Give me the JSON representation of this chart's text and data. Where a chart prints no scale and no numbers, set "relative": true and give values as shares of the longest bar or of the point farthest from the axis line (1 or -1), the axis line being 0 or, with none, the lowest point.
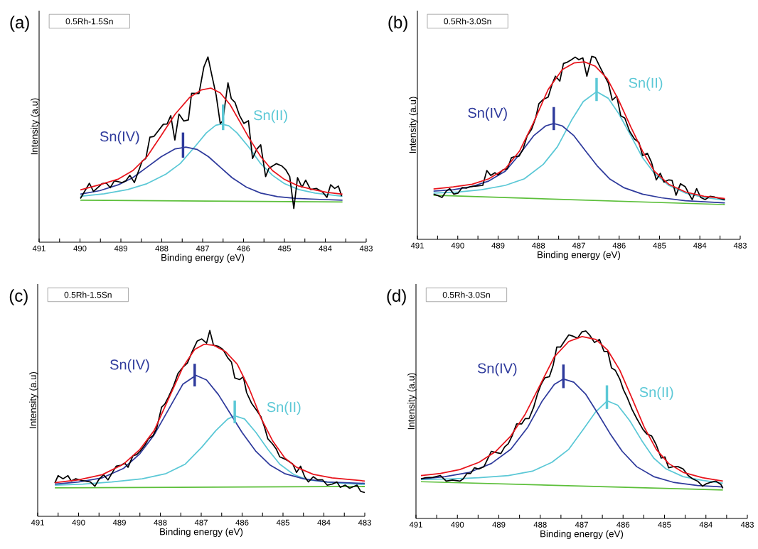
{
  "chart_data": [
    {
      "type": "line",
      "relative": true,
      "tick_labels": "x",
      "marker": "none",
      "title": "(a)",
      "subtitle": "0.5Rh-1.5Sn",
      "xlabel": "Binding energy (eV)",
      "ylabel": "Intensity (a.u)",
      "xlim": [
        491,
        483
      ],
      "xticks": [
        491,
        {
          "value": 490.5,
          "label": null
        },
        490,
        {
          "value": 489.5,
          "label": null
        },
        489,
        {
          "value": 488.5,
          "label": null
        },
        488,
        {
          "value": 487.5,
          "label": null
        },
        487,
        {
          "value": 486.5,
          "label": null
        },
        486,
        {
          "value": 485.5,
          "label": null
        },
        485,
        {
          "value": 484.5,
          "label": null
        },
        484,
        {
          "value": 483.5,
          "label": null
        },
        483
      ],
      "series": [
        {
          "color": "#5cbf3a",
          "x": [
            489.99,
            483.58
          ],
          "values": [
            0.227,
            0.217
          ]
        },
        {
          "name": "Sn(II)",
          "color": "#5bc8d6",
          "x": [
            489.99,
            489.41,
            488.83,
            488.36,
            487.9,
            487.55,
            487.2,
            486.91,
            486.68,
            486.54,
            486.36,
            486.16,
            485.87,
            485.58,
            485.29,
            485.0,
            484.65,
            484.25,
            483.58
          ],
          "values": [
            0.248,
            0.261,
            0.284,
            0.316,
            0.367,
            0.424,
            0.513,
            0.59,
            0.631,
            0.638,
            0.628,
            0.59,
            0.513,
            0.424,
            0.361,
            0.316,
            0.284,
            0.265,
            0.248
          ]
        },
        {
          "name": "Sn(IV)",
          "color": "#2e3a9c",
          "x": [
            489.99,
            489.52,
            489.06,
            488.71,
            488.36,
            488.01,
            487.67,
            487.41,
            487.14,
            486.86,
            486.57,
            486.28,
            485.93,
            485.58,
            485.17,
            484.71,
            484.13,
            483.58
          ],
          "values": [
            0.259,
            0.278,
            0.31,
            0.348,
            0.405,
            0.462,
            0.504,
            0.513,
            0.501,
            0.462,
            0.405,
            0.348,
            0.297,
            0.265,
            0.246,
            0.236,
            0.231,
            0.227
          ]
        },
        {
          "color": "#000000",
          "x": [
            489.99,
            489.77,
            489.67,
            489.46,
            489.36,
            489.26,
            489.16,
            488.97,
            488.88,
            488.78,
            488.67,
            488.48,
            488.39,
            488.29,
            488.19,
            487.96,
            487.87,
            487.78,
            487.68,
            487.58,
            487.46,
            487.35,
            487.27,
            487.09,
            486.97,
            486.87,
            486.77,
            486.67,
            486.57,
            486.51,
            486.38,
            486.3,
            486.21,
            486.1,
            485.99,
            485.88,
            485.78,
            485.68,
            485.58,
            485.46,
            485.38,
            485.2,
            485.06,
            484.97,
            484.87,
            484.77,
            484.68,
            484.57,
            484.48,
            484.36,
            484.22,
            484.07,
            483.96,
            483.87,
            483.77,
            483.68,
            483.6
          ],
          "values": [
            0.236,
            0.318,
            0.274,
            0.316,
            0.32,
            0.294,
            0.331,
            0.322,
            0.331,
            0.361,
            0.322,
            0.437,
            0.452,
            0.567,
            0.571,
            0.637,
            0.638,
            0.683,
            0.552,
            0.692,
            0.654,
            0.66,
            0.804,
            0.803,
            0.946,
            1,
            0.896,
            0.794,
            0.641,
            0.654,
            0.86,
            0.775,
            0.755,
            0.685,
            0.641,
            0.656,
            0.452,
            0.501,
            0.526,
            0.354,
            0.399,
            0.424,
            0.411,
            0.392,
            0.354,
            0.182,
            0.348,
            0.297,
            0.335,
            0.284,
            0.29,
            0.271,
            0.242,
            0.31,
            0.29,
            0.303,
            0.248
          ]
        },
        {
          "color": "#e8141c",
          "x": [
            489.99,
            489.52,
            489.06,
            488.71,
            488.36,
            488.01,
            487.67,
            487.32,
            487.03,
            486.8,
            486.57,
            486.33,
            486.1,
            485.87,
            485.58,
            485.29,
            485.0,
            484.65,
            484.3,
            483.96,
            483.58
          ],
          "values": [
            0.282,
            0.31,
            0.341,
            0.386,
            0.462,
            0.577,
            0.692,
            0.781,
            0.822,
            0.832,
            0.806,
            0.743,
            0.654,
            0.564,
            0.462,
            0.386,
            0.339,
            0.303,
            0.284,
            0.269,
            0.259
          ]
        },
        {
          "color": "#2e3a9c",
          "x": [
            487.48,
            487.48
          ],
          "values": [
            0.456,
            0.592
          ]
        },
        {
          "color": "#5bc8d6",
          "x": [
            486.5,
            486.5
          ],
          "values": [
            0.605,
            0.743
          ]
        }
      ]
    },
    {
      "type": "line",
      "relative": true,
      "tick_labels": "x",
      "marker": "none",
      "title": "(b)",
      "subtitle": "0.5Rh-3.0Sn",
      "xlabel": "Binding energy (eV)",
      "ylabel": "Intensity (a.u)",
      "xlim": [
        491,
        483
      ],
      "xticks": [
        491,
        {
          "value": 490.5,
          "label": null
        },
        490,
        {
          "value": 489.5,
          "label": null
        },
        489,
        {
          "value": 488.5,
          "label": null
        },
        488,
        {
          "value": 487.5,
          "label": null
        },
        487,
        {
          "value": 486.5,
          "label": null
        },
        486,
        {
          "value": 485.5,
          "label": null
        },
        485,
        {
          "value": 484.5,
          "label": null
        },
        484,
        {
          "value": 483.5,
          "label": null
        },
        483
      ],
      "series": [
        {
          "color": "#5cbf3a",
          "x": [
            490.6,
            483.38
          ],
          "values": [
            0.241,
            0.19
          ]
        },
        {
          "name": "Sn(II)",
          "color": "#5bc8d6",
          "x": [
            490.6,
            489.99,
            489.41,
            488.82,
            488.35,
            487.88,
            487.53,
            487.18,
            486.89,
            486.56,
            486.27,
            486.01,
            485.71,
            485.42,
            485.13,
            484.77,
            484.36,
            483.9,
            483.38
          ],
          "values": [
            0.253,
            0.259,
            0.271,
            0.295,
            0.331,
            0.41,
            0.506,
            0.651,
            0.753,
            0.807,
            0.771,
            0.687,
            0.566,
            0.446,
            0.361,
            0.295,
            0.253,
            0.229,
            0.214
          ]
        },
        {
          "name": "Sn(IV)",
          "color": "#2e3a9c",
          "x": [
            490.6,
            490.11,
            489.64,
            489.23,
            488.82,
            488.47,
            488.12,
            487.82,
            487.62,
            487.41,
            487.12,
            486.83,
            486.53,
            486.24,
            485.89,
            485.42,
            484.95,
            484.36,
            483.38
          ],
          "values": [
            0.263,
            0.271,
            0.289,
            0.319,
            0.373,
            0.464,
            0.566,
            0.62,
            0.633,
            0.62,
            0.566,
            0.482,
            0.398,
            0.331,
            0.283,
            0.247,
            0.227,
            0.211,
            0.199
          ]
        },
        {
          "color": "#000000",
          "x": [
            490.6,
            490.49,
            490.39,
            490.28,
            490.2,
            490.1,
            489.99,
            489.89,
            489.79,
            489.67,
            489.52,
            489.38,
            489.28,
            489.18,
            489.08,
            489.0,
            488.88,
            488.77,
            488.67,
            488.59,
            488.48,
            488.38,
            488.28,
            488.17,
            488.07,
            487.99,
            487.88,
            487.76,
            487.66,
            487.58,
            487.47,
            487.38,
            487.3,
            487.18,
            487.09,
            487.0,
            486.9,
            486.8,
            486.68,
            486.59,
            486.47,
            486.36,
            486.27,
            486.17,
            486.06,
            485.96,
            485.86,
            485.74,
            485.62,
            485.51,
            485.42,
            485.3,
            485.2,
            485.08,
            484.98,
            484.89,
            484.77,
            484.69,
            484.59,
            484.48,
            484.36,
            484.28,
            484.19,
            484.08,
            483.98,
            483.87,
            483.75,
            483.63,
            483.49,
            483.38
          ],
          "values": [
            0.247,
            0.239,
            0.229,
            0.265,
            0.277,
            0.247,
            0.253,
            0.283,
            0.28,
            0.289,
            0.292,
            0.295,
            0.376,
            0.349,
            0.364,
            0.352,
            0.38,
            0.386,
            0.446,
            0.452,
            0.455,
            0.494,
            0.566,
            0.602,
            0.663,
            0.741,
            0.765,
            0.777,
            0.849,
            0.892,
            0.865,
            0.961,
            0.967,
            0.982,
            0.996,
            0.982,
            0.992,
            0.892,
            1,
            0.994,
            0.94,
            0.892,
            0.855,
            0.761,
            0.783,
            0.675,
            0.663,
            0.59,
            0.548,
            0.53,
            0.458,
            0.47,
            0.422,
            0.325,
            0.361,
            0.313,
            0.325,
            0.323,
            0.241,
            0.304,
            0.287,
            0.253,
            0.217,
            0.277,
            0.229,
            0.217,
            0.235,
            0.231,
            0.223,
            0.217
          ]
        },
        {
          "color": "#e8141c",
          "x": [
            490.6,
            490.11,
            489.64,
            489.23,
            488.82,
            488.47,
            488.12,
            487.76,
            487.41,
            487.12,
            486.86,
            486.59,
            486.3,
            486.01,
            485.71,
            485.42,
            485.13,
            484.77,
            484.36,
            483.9,
            483.38
          ],
          "values": [
            0.275,
            0.287,
            0.301,
            0.331,
            0.386,
            0.482,
            0.639,
            0.819,
            0.928,
            0.964,
            0.97,
            0.946,
            0.88,
            0.759,
            0.614,
            0.482,
            0.373,
            0.301,
            0.259,
            0.235,
            0.223
          ]
        },
        {
          "color": "#2e3a9c",
          "x": [
            487.62,
            487.62
          ],
          "values": [
            0.597,
            0.723
          ]
        },
        {
          "color": "#5bc8d6",
          "x": [
            486.56,
            486.56
          ],
          "values": [
            0.756,
            0.882
          ]
        }
      ]
    },
    {
      "type": "line",
      "relative": true,
      "tick_labels": "x",
      "marker": "none",
      "title": "(c)",
      "subtitle": "0.5Rh-1.5Sn",
      "xlabel": "Binding energy (eV)",
      "ylabel": "Intensity (a.u)",
      "xlim": [
        491,
        483
      ],
      "xticks": [
        491,
        {
          "value": 490.5,
          "label": null
        },
        490,
        {
          "value": 489.5,
          "label": null
        },
        489,
        {
          "value": 488.5,
          "label": null
        },
        488,
        {
          "value": 487.5,
          "label": null
        },
        487,
        {
          "value": 486.5,
          "label": null
        },
        486,
        {
          "value": 485.5,
          "label": null
        },
        485,
        {
          "value": 484.5,
          "label": null
        },
        484,
        {
          "value": 483.5,
          "label": null
        },
        483
      ],
      "series": [
        {
          "color": "#5cbf3a",
          "x": [
            490.58,
            483.0
          ],
          "values": [
            0.153,
            0.161
          ]
        },
        {
          "name": "Sn(II)",
          "color": "#5bc8d6",
          "x": [
            490.58,
            489.89,
            489.19,
            488.44,
            487.86,
            487.39,
            486.99,
            486.64,
            486.35,
            486.18,
            485.94,
            485.66,
            485.37,
            485.08,
            484.73,
            484.38,
            483.8,
            483.0
          ],
          "values": [
            0.168,
            0.173,
            0.185,
            0.202,
            0.23,
            0.281,
            0.371,
            0.462,
            0.524,
            0.541,
            0.524,
            0.451,
            0.36,
            0.281,
            0.224,
            0.196,
            0.181,
            0.171
          ]
        },
        {
          "name": "Sn(IV)",
          "color": "#2e3a9c",
          "x": [
            490.58,
            490.0,
            489.42,
            488.9,
            488.5,
            488.15,
            487.8,
            487.45,
            487.13,
            486.87,
            486.58,
            486.29,
            486.0,
            485.66,
            485.31,
            484.96,
            484.5,
            483.92,
            483.0
          ],
          "values": [
            0.173,
            0.185,
            0.207,
            0.258,
            0.337,
            0.439,
            0.575,
            0.711,
            0.759,
            0.734,
            0.655,
            0.553,
            0.451,
            0.349,
            0.275,
            0.23,
            0.202,
            0.185,
            0.177
          ]
        },
        {
          "color": "#000000",
          "x": [
            490.58,
            490.5,
            490.38,
            490.26,
            490.18,
            490.07,
            489.92,
            489.71,
            489.6,
            489.51,
            489.39,
            489.28,
            489.19,
            489.08,
            488.96,
            488.87,
            488.79,
            488.67,
            488.58,
            488.5,
            488.38,
            488.29,
            488.18,
            488.09,
            487.97,
            487.89,
            487.8,
            487.68,
            487.57,
            487.45,
            487.34,
            487.22,
            487.1,
            486.99,
            486.87,
            486.79,
            486.7,
            486.58,
            486.47,
            486.35,
            486.26,
            486.18,
            486.06,
            485.97,
            485.89,
            485.77,
            485.66,
            485.54,
            485.45,
            485.37,
            485.25,
            485.16,
            485.08,
            484.96,
            484.87,
            484.76,
            484.67,
            484.57,
            484.47,
            484.38,
            484.26,
            484.15,
            484.03,
            483.92,
            483.8,
            483.68,
            483.6,
            483.48,
            483.37,
            483.19,
            483.1,
            483.0
          ],
          "values": [
            0.179,
            0.219,
            0.202,
            0.219,
            0.19,
            0.202,
            0.193,
            0.185,
            0.162,
            0.196,
            0.224,
            0.196,
            0.23,
            0.27,
            0.275,
            0.287,
            0.264,
            0.326,
            0.332,
            0.349,
            0.383,
            0.417,
            0.434,
            0.473,
            0.587,
            0.604,
            0.643,
            0.7,
            0.768,
            0.802,
            0.824,
            0.887,
            0.943,
            0.955,
            0.932,
            1,
            0.921,
            0.915,
            0.898,
            0.853,
            0.83,
            0.745,
            0.736,
            0.751,
            0.666,
            0.609,
            0.575,
            0.536,
            0.479,
            0.417,
            0.388,
            0.36,
            0.32,
            0.309,
            0.298,
            0.281,
            0.236,
            0.27,
            0.213,
            0.185,
            0.213,
            0.196,
            0.196,
            0.168,
            0.173,
            0.185,
            0.156,
            0.168,
            0.151,
            0.168,
            0.134,
            0.128
          ]
        },
        {
          "color": "#e8141c",
          "x": [
            490.58,
            490.0,
            489.42,
            488.9,
            488.5,
            488.15,
            487.8,
            487.45,
            487.16,
            486.93,
            486.7,
            486.41,
            486.12,
            485.83,
            485.54,
            485.25,
            484.96,
            484.67,
            484.26,
            483.8,
            483.0
          ],
          "values": [
            0.181,
            0.196,
            0.224,
            0.281,
            0.36,
            0.462,
            0.632,
            0.802,
            0.898,
            0.926,
            0.921,
            0.887,
            0.819,
            0.689,
            0.53,
            0.405,
            0.315,
            0.264,
            0.226,
            0.207,
            0.19
          ]
        },
        {
          "color": "#2e3a9c",
          "x": [
            487.16,
            487.16
          ],
          "values": [
            0.699,
            0.821
          ]
        },
        {
          "color": "#5bc8d6",
          "x": [
            486.18,
            486.18
          ],
          "values": [
            0.501,
            0.623
          ]
        }
      ]
    },
    {
      "type": "line",
      "relative": true,
      "tick_labels": "x",
      "marker": "none",
      "title": "(d)",
      "subtitle": "0.5Rh-3.0Sn",
      "xlabel": "Binding energy (eV)",
      "ylabel": "Intensity (a.u)",
      "xlim": [
        491,
        483
      ],
      "xticks": [
        491,
        {
          "value": 490.5,
          "label": null
        },
        490,
        {
          "value": 489.5,
          "label": null
        },
        489,
        {
          "value": 488.5,
          "label": null
        },
        488,
        {
          "value": 487.5,
          "label": null
        },
        487,
        {
          "value": 486.5,
          "label": null
        },
        486,
        {
          "value": 485.5,
          "label": null
        },
        485,
        {
          "value": 484.5,
          "label": null
        },
        484,
        {
          "value": 483.5,
          "label": null
        },
        483
      ],
      "series": [
        {
          "color": "#5cbf3a",
          "x": [
            490.88,
            483.59
          ],
          "values": [
            0.196,
            0.152
          ]
        },
        {
          "name": "Sn(II)",
          "color": "#5bc8d6",
          "x": [
            490.88,
            490.18,
            489.48,
            488.77,
            488.19,
            487.72,
            487.31,
            486.96,
            486.66,
            486.38,
            486.13,
            485.84,
            485.55,
            485.26,
            484.96,
            484.55,
            484.08,
            483.59
          ],
          "values": [
            0.208,
            0.211,
            0.217,
            0.229,
            0.252,
            0.299,
            0.369,
            0.475,
            0.569,
            0.627,
            0.604,
            0.522,
            0.416,
            0.322,
            0.264,
            0.223,
            0.203,
            0.188
          ]
        },
        {
          "name": "Sn(IV)",
          "color": "#2e3a9c",
          "x": [
            490.88,
            490.3,
            489.71,
            489.18,
            488.71,
            488.3,
            487.95,
            487.66,
            487.44,
            487.19,
            486.9,
            486.6,
            486.31,
            486.02,
            485.67,
            485.26,
            484.79,
            484.2,
            483.59
          ],
          "values": [
            0.211,
            0.223,
            0.246,
            0.293,
            0.369,
            0.487,
            0.627,
            0.715,
            0.744,
            0.727,
            0.662,
            0.557,
            0.451,
            0.358,
            0.276,
            0.223,
            0.193,
            0.176,
            0.168
          ]
        },
        {
          "color": "#000000",
          "x": [
            490.88,
            490.77,
            490.59,
            490.41,
            490.27,
            490.12,
            489.94,
            489.86,
            489.77,
            489.68,
            489.59,
            489.48,
            489.36,
            489.27,
            489.18,
            489.07,
            488.95,
            488.86,
            488.77,
            488.68,
            488.57,
            488.45,
            488.36,
            488.27,
            488.16,
            488.07,
            487.98,
            487.89,
            487.78,
            487.69,
            487.6,
            487.51,
            487.42,
            487.31,
            487.22,
            487.1,
            486.99,
            486.9,
            486.81,
            486.69,
            486.57,
            486.46,
            486.37,
            486.28,
            486.19,
            486.08,
            485.99,
            485.9,
            485.78,
            485.67,
            485.52,
            485.43,
            485.31,
            485.2,
            485.08,
            484.99,
            484.9,
            484.79,
            484.67,
            484.55,
            484.43,
            484.32,
            484.2,
            484.08,
            484.0,
            483.88,
            483.76,
            483.64,
            483.59
          ],
          "values": [
            0.211,
            0.217,
            0.219,
            0.229,
            0.199,
            0.205,
            0.199,
            0.211,
            0.24,
            0.24,
            0.27,
            0.264,
            0.276,
            0.317,
            0.358,
            0.352,
            0.346,
            0.381,
            0.399,
            0.44,
            0.504,
            0.504,
            0.533,
            0.533,
            0.592,
            0.662,
            0.715,
            0.75,
            0.756,
            0.815,
            0.914,
            0.914,
            0.944,
            0.979,
            0.973,
            0.961,
            0.996,
            1,
            0.979,
            0.938,
            0.955,
            0.891,
            0.891,
            0.803,
            0.791,
            0.744,
            0.686,
            0.645,
            0.58,
            0.533,
            0.475,
            0.451,
            0.44,
            0.393,
            0.322,
            0.328,
            0.27,
            0.276,
            0.276,
            0.264,
            0.229,
            0.211,
            0.199,
            0.172,
            0.184,
            0.193,
            0.199,
            0.182,
            0.161
          ]
        },
        {
          "color": "#e8141c",
          "x": [
            490.88,
            490.41,
            489.94,
            489.48,
            489.07,
            488.71,
            488.36,
            488.01,
            487.66,
            487.31,
            486.99,
            486.66,
            486.37,
            486.08,
            485.78,
            485.49,
            485.2,
            484.9,
            484.55,
            484.08,
            483.59
          ],
          "values": [
            0.229,
            0.24,
            0.261,
            0.299,
            0.358,
            0.44,
            0.557,
            0.709,
            0.862,
            0.944,
            0.97,
            0.955,
            0.897,
            0.791,
            0.639,
            0.487,
            0.369,
            0.293,
            0.246,
            0.217,
            0.199
          ]
        },
        {
          "color": "#2e3a9c",
          "x": [
            487.44,
            487.44
          ],
          "values": [
            0.695,
            0.821
          ]
        },
        {
          "color": "#5bc8d6",
          "x": [
            486.39,
            486.39
          ],
          "values": [
            0.584,
            0.71
          ]
        }
      ]
    }
  ]
}
